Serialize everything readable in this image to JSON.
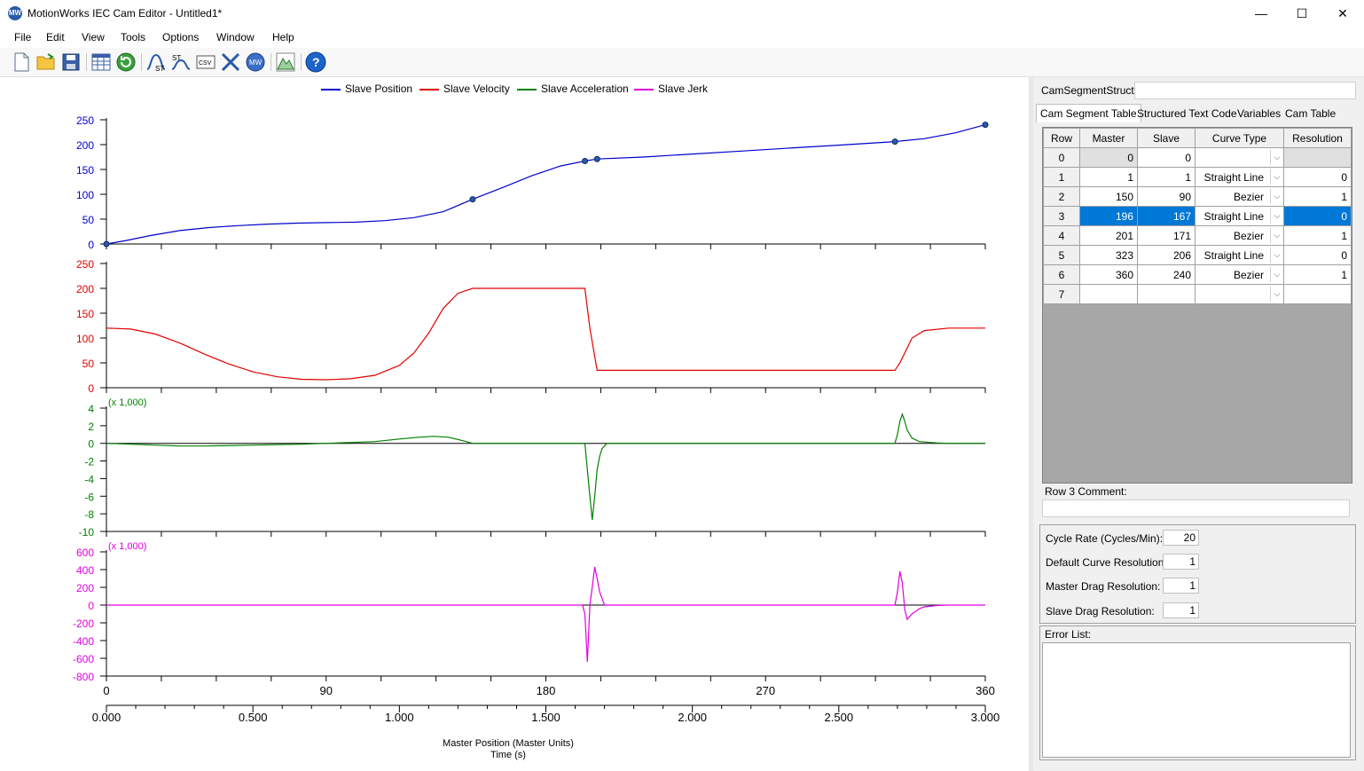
{
  "window": {
    "title": "MotionWorks IEC Cam Editor - Untitled1*",
    "minimize": "—",
    "maximize": "☐",
    "close": "✕",
    "app_icon": "MW"
  },
  "menu": [
    "File",
    "Edit",
    "View",
    "Tools",
    "Options",
    "Window",
    "Help"
  ],
  "toolbar_icons": [
    "new-file-icon",
    "open-folder-icon",
    "save-icon",
    "cam-table-icon",
    "refresh-icon",
    "st-curve-icon",
    "st-import-icon",
    "csv-icon",
    "zoom-icon",
    "motionworks-icon",
    "mountain-chart-icon",
    "help-icon"
  ],
  "legend": [
    {
      "name": "Slave Position",
      "color": "#0000cc"
    },
    {
      "name": "Slave Velocity",
      "color": "#e00000"
    },
    {
      "name": "Slave Acceleration",
      "color": "#008000"
    },
    {
      "name": "Slave Jerk",
      "color": "#e000e0"
    }
  ],
  "chart_data": [
    {
      "type": "line",
      "name": "Slave Position",
      "color": "#0000cc",
      "ylim": [
        0,
        250
      ],
      "yticks": [
        0,
        50,
        100,
        150,
        200,
        250
      ],
      "x": [
        0,
        8,
        18,
        30,
        42,
        54,
        66,
        78,
        90,
        102,
        114,
        126,
        138,
        150,
        162,
        174,
        186,
        196,
        201,
        220,
        240,
        260,
        280,
        300,
        323,
        335,
        348,
        360
      ],
      "y": [
        0,
        7,
        17,
        27,
        33,
        37,
        40,
        42,
        43,
        44,
        47,
        53,
        65,
        90,
        113,
        137,
        157,
        167,
        171,
        175,
        181,
        187,
        193,
        199,
        206,
        212,
        224,
        240
      ],
      "points": [
        [
          0,
          0
        ],
        [
          150,
          90
        ],
        [
          196,
          167
        ],
        [
          201,
          171
        ],
        [
          323,
          206
        ],
        [
          360,
          240
        ]
      ]
    },
    {
      "type": "line",
      "name": "Slave Velocity",
      "color": "#e00000",
      "ylim": [
        0,
        250
      ],
      "yticks": [
        0,
        50,
        100,
        150,
        200,
        250
      ],
      "x": [
        0,
        10,
        20,
        30,
        40,
        50,
        60,
        70,
        80,
        90,
        100,
        110,
        120,
        126,
        132,
        138,
        144,
        150,
        160,
        170,
        180,
        190,
        196,
        198,
        201,
        210,
        240,
        270,
        300,
        323,
        325,
        330,
        335,
        345,
        360
      ],
      "y": [
        120,
        118,
        108,
        90,
        68,
        48,
        32,
        22,
        17,
        16,
        18,
        25,
        45,
        70,
        110,
        160,
        190,
        200,
        200,
        200,
        200,
        200,
        200,
        120,
        35,
        35,
        35,
        35,
        35,
        35,
        50,
        100,
        115,
        120,
        120
      ]
    },
    {
      "type": "line",
      "name": "Slave Acceleration",
      "color": "#008000",
      "unit_label": "(x 1,000)",
      "ylim": [
        -10,
        4
      ],
      "yticks": [
        -10,
        -8,
        -6,
        -4,
        -2,
        0,
        2,
        4
      ],
      "x": [
        0,
        20,
        30,
        40,
        60,
        80,
        90,
        100,
        110,
        120,
        128,
        134,
        140,
        146,
        150,
        196,
        197,
        198,
        199,
        200,
        201,
        202,
        203,
        205,
        323,
        324,
        325,
        326,
        327,
        328,
        330,
        333,
        340,
        345,
        360
      ],
      "y": [
        0,
        -0.2,
        -0.3,
        -0.3,
        -0.2,
        -0.1,
        0,
        0.1,
        0.2,
        0.5,
        0.7,
        0.8,
        0.7,
        0.3,
        0,
        0,
        -3,
        -6,
        -8.7,
        -6,
        -3,
        -1.5,
        -0.6,
        0,
        0,
        1,
        2.5,
        3.3,
        2.5,
        1.5,
        0.6,
        0.2,
        0.05,
        0,
        0
      ]
    },
    {
      "type": "line",
      "name": "Slave Jerk",
      "color": "#e000e0",
      "unit_label": "(x 1,000)",
      "ylim": [
        -800,
        600
      ],
      "yticks": [
        -800,
        -600,
        -400,
        -200,
        0,
        200,
        400,
        600
      ],
      "x": [
        0,
        195,
        196,
        197,
        198,
        199,
        200,
        201,
        202,
        204,
        323,
        324,
        325,
        326,
        327,
        328,
        330,
        333,
        335,
        340,
        345,
        360
      ],
      "y": [
        0,
        0,
        -100,
        -640,
        0,
        200,
        430,
        300,
        150,
        0,
        0,
        150,
        380,
        250,
        -50,
        -160,
        -100,
        -40,
        -20,
        -5,
        0,
        0
      ]
    }
  ],
  "x_axis": {
    "master_ticks": [
      0,
      90,
      180,
      270,
      360
    ],
    "time_ticks": [
      "0.000",
      "0.500",
      "1.000",
      "1.500",
      "2.000",
      "2.500",
      "3.000"
    ],
    "label_master": "Master Position (Master Units)",
    "label_time": "Time (s)"
  },
  "right": {
    "struct_label": "CamSegmentStruct:",
    "struct_value": "",
    "tabs": [
      "Cam Segment Table",
      "Structured Text Code",
      "Variables",
      "Cam Table Data"
    ],
    "columns": [
      "Row",
      "Master",
      "Slave",
      "Curve Type",
      "Resolution"
    ],
    "rows": [
      {
        "row": "0",
        "master": "0",
        "slave": "0",
        "curve": "",
        "res": ""
      },
      {
        "row": "1",
        "master": "1",
        "slave": "1",
        "curve": "Straight Line",
        "res": "0"
      },
      {
        "row": "2",
        "master": "150",
        "slave": "90",
        "curve": "Bezier",
        "res": "1"
      },
      {
        "row": "3",
        "master": "196",
        "slave": "167",
        "curve": "Straight Line",
        "res": "0"
      },
      {
        "row": "4",
        "master": "201",
        "slave": "171",
        "curve": "Bezier",
        "res": "1"
      },
      {
        "row": "5",
        "master": "323",
        "slave": "206",
        "curve": "Straight Line",
        "res": "0"
      },
      {
        "row": "6",
        "master": "360",
        "slave": "240",
        "curve": "Bezier",
        "res": "1"
      },
      {
        "row": "7",
        "master": "",
        "slave": "",
        "curve": "",
        "res": ""
      }
    ],
    "comment_label": "Row 3 Comment:",
    "comment_value": "",
    "cycle_rate_label": "Cycle Rate (Cycles/Min):",
    "cycle_rate": "20",
    "default_res_label": "Default Curve Resolution:",
    "default_res": "1",
    "master_drag_label": "Master Drag Resolution:",
    "master_drag": "1",
    "slave_drag_label": "Slave Drag Resolution:",
    "slave_drag": "1",
    "error_label": "Error List:"
  }
}
